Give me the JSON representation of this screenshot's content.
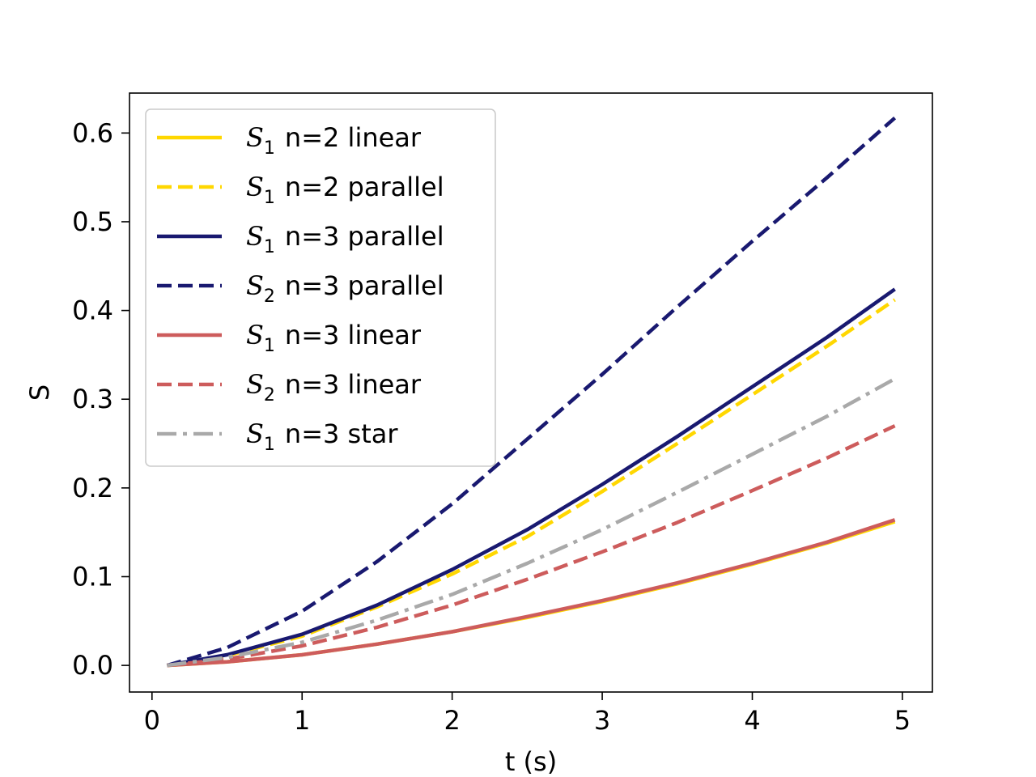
{
  "chart_data": {
    "type": "line",
    "title": "",
    "xlabel": "t (s)",
    "ylabel": "S",
    "xlim": [
      -0.15,
      5.2
    ],
    "ylim": [
      -0.03,
      0.645
    ],
    "xticks": [
      0,
      1,
      2,
      3,
      4,
      5
    ],
    "xtick_labels": [
      "0",
      "1",
      "2",
      "3",
      "4",
      "5"
    ],
    "yticks": [
      0.0,
      0.1,
      0.2,
      0.3,
      0.4,
      0.5,
      0.6
    ],
    "ytick_labels": [
      "0.0",
      "0.1",
      "0.2",
      "0.3",
      "0.4",
      "0.5",
      "0.6"
    ],
    "grid": false,
    "legend_position": "upper-left",
    "x": [
      0.1,
      0.5,
      1.0,
      1.5,
      2.0,
      2.5,
      3.0,
      3.5,
      4.0,
      4.5,
      4.95
    ],
    "series": [
      {
        "name": "n=2 linear",
        "symbol": "S",
        "subscript": "1",
        "color": "#FFD700",
        "dash": "solid",
        "values": [
          0.0,
          0.004,
          0.012,
          0.024,
          0.038,
          0.054,
          0.072,
          0.092,
          0.114,
          0.138,
          0.162
        ]
      },
      {
        "name": "n=2 parallel",
        "symbol": "S",
        "subscript": "1",
        "color": "#FFD700",
        "dash": "dashed",
        "values": [
          0.0,
          0.011,
          0.033,
          0.066,
          0.103,
          0.145,
          0.196,
          0.25,
          0.305,
          0.36,
          0.412
        ]
      },
      {
        "name": "n=3 parallel",
        "symbol": "S",
        "subscript": "1",
        "color": "#191970",
        "dash": "solid",
        "values": [
          0.0,
          0.012,
          0.035,
          0.068,
          0.108,
          0.153,
          0.204,
          0.258,
          0.314,
          0.37,
          0.424
        ]
      },
      {
        "name": "n=3 parallel",
        "symbol": "S",
        "subscript": "2",
        "color": "#191970",
        "dash": "dashed",
        "values": [
          0.0,
          0.02,
          0.061,
          0.117,
          0.182,
          0.255,
          0.328,
          0.404,
          0.478,
          0.55,
          0.617
        ]
      },
      {
        "name": "n=3 linear",
        "symbol": "S",
        "subscript": "1",
        "color": "#CD5C5C",
        "dash": "solid",
        "values": [
          0.0,
          0.004,
          0.012,
          0.024,
          0.038,
          0.055,
          0.073,
          0.093,
          0.115,
          0.139,
          0.164
        ]
      },
      {
        "name": "n=3 linear",
        "symbol": "S",
        "subscript": "2",
        "color": "#CD5C5C",
        "dash": "dashed",
        "values": [
          0.0,
          0.007,
          0.022,
          0.043,
          0.068,
          0.097,
          0.128,
          0.161,
          0.197,
          0.234,
          0.27
        ]
      },
      {
        "name": "n=3 star",
        "symbol": "S",
        "subscript": "1",
        "color": "#A9A9A9",
        "dash": "dashdot",
        "values": [
          0.0,
          0.009,
          0.026,
          0.051,
          0.08,
          0.115,
          0.153,
          0.195,
          0.238,
          0.281,
          0.323
        ]
      }
    ]
  }
}
